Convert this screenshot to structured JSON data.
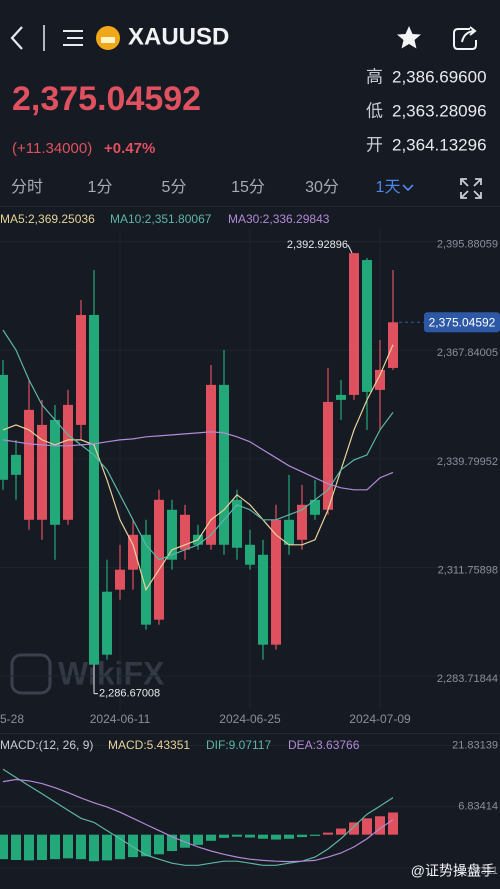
{
  "header": {
    "symbol": "XAUUSD",
    "price": "2,375.04592",
    "change": "(+11.34000)",
    "change_pct": "+0.47%",
    "stats": [
      {
        "label": "高",
        "value": "2,386.69600"
      },
      {
        "label": "低",
        "value": "2,363.28096"
      },
      {
        "label": "开",
        "value": "2,364.13296"
      }
    ],
    "tabs": [
      "分时",
      "1分",
      "5分",
      "15分",
      "30分",
      "1天"
    ]
  },
  "watermark": "WikiFX",
  "credit": "@证势操盘手",
  "chart_data": [
    {
      "type": "candlestick",
      "open": [
        2361.47,
        2340.83,
        2324.07,
        2324.07,
        2349.86,
        2324.07,
        2348.57,
        2376.94,
        2305.5,
        2306.02,
        2311.18,
        2320.2,
        2298.28,
        2326.65,
        2316.33,
        2320.2,
        2317.62,
        2358.89,
        2329.23,
        2317.62,
        2315.04,
        2291.83,
        2324.07,
        2318.91,
        2329.23,
        2326.65,
        2356.31,
        2356.31,
        2391.12,
        2357.6,
        2363.27
      ],
      "high": [
        2365.33,
        2344.7,
        2360.18,
        2355.02,
        2353.73,
        2357.6,
        2380.81,
        2388.55,
        2313.76,
        2317.62,
        2324.07,
        2324.07,
        2331.81,
        2329.23,
        2327.94,
        2322.78,
        2364.04,
        2367.91,
        2331.81,
        2321.49,
        2318.91,
        2327.94,
        2335.67,
        2333.1,
        2334.39,
        2363.27,
        2360.18,
        2392.92896,
        2391.64,
        2370.49,
        2388.55
      ],
      "low": [
        2331.81,
        2329.23,
        2321.49,
        2318.91,
        2313.76,
        2322.78,
        2344.7,
        2286.67008,
        2287.96,
        2303.44,
        2306.02,
        2295.7,
        2296.99,
        2311.18,
        2313.76,
        2316.33,
        2316.33,
        2315.04,
        2313.76,
        2311.18,
        2287.96,
        2290.54,
        2315.04,
        2316.33,
        2324.07,
        2325.36,
        2349.86,
        2355.02,
        2347.28,
        2347.28,
        2362.76
      ],
      "close": [
        2334.39,
        2335.67,
        2352.44,
        2348.57,
        2322.78,
        2353.73,
        2376.94,
        2286.67,
        2289.25,
        2311.18,
        2320.2,
        2296.99,
        2329.23,
        2313.76,
        2325.36,
        2317.62,
        2358.89,
        2317.62,
        2316.85,
        2312.47,
        2291.83,
        2324.07,
        2317.62,
        2327.94,
        2325.36,
        2354.5,
        2355.02,
        2392.9,
        2357.08,
        2362.76,
        2375.04592
      ],
      "up_color": "#e0515f",
      "down_color": "#23a87a",
      "series": [
        {
          "name": "MA5",
          "label": "MA5:2,369.25036",
          "color": "#e6d39a",
          "values": [
            2347.28,
            2348.57,
            2347.28,
            2344.7,
            2343.41,
            2344.7,
            2344.7,
            2343.41,
            2334.39,
            2324.07,
            2317.62,
            2306.02,
            2311.18,
            2316.33,
            2317.62,
            2318.91,
            2324.07,
            2326.65,
            2330.52,
            2327.94,
            2324.07,
            2320.2,
            2317.62,
            2317.62,
            2318.91,
            2326.65,
            2336.97,
            2347.28,
            2355.02,
            2361.47,
            2369.25036
          ]
        },
        {
          "name": "MA10",
          "label": "MA10:2,351.80067",
          "color": "#5db5a6",
          "values": [
            2373.07,
            2367.91,
            2360.18,
            2353.73,
            2349.86,
            2345.99,
            2343.41,
            2340.83,
            2336.97,
            2330.52,
            2324.07,
            2317.62,
            2313.76,
            2315.04,
            2316.33,
            2317.62,
            2320.2,
            2324.07,
            2327.94,
            2326.65,
            2324.07,
            2324.07,
            2325.36,
            2326.65,
            2329.23,
            2331.81,
            2336.97,
            2339.54,
            2340.83,
            2347.28,
            2351.80067
          ]
        },
        {
          "name": "MA30",
          "label": "MA30:2,336.29843",
          "color": "#b38ad6",
          "values": [
            2344.7,
            2344.19,
            2343.67,
            2343.41,
            2343.16,
            2343.16,
            2343.41,
            2343.67,
            2344.19,
            2344.7,
            2344.96,
            2345.48,
            2345.73,
            2345.99,
            2346.25,
            2346.51,
            2346.77,
            2346.51,
            2345.48,
            2344.19,
            2342.12,
            2340.06,
            2338.0,
            2336.45,
            2334.9,
            2333.36,
            2332.32,
            2331.81,
            2331.81,
            2334.9,
            2336.29843
          ]
        }
      ],
      "ylim": [
        2283.71844,
        2395.88059
      ],
      "yticks": [
        {
          "value": 2395.88059,
          "label": "2,395.88059"
        },
        {
          "value": 2367.84005,
          "label": "2,367.84005"
        },
        {
          "value": 2339.79952,
          "label": "2,339.79952"
        },
        {
          "value": 2311.75898,
          "label": "2,311.75898"
        },
        {
          "value": 2283.71844,
          "label": "2,283.71844"
        }
      ],
      "xticks": [
        {
          "value": -1,
          "label": "5-28"
        },
        {
          "value": 9,
          "label": "2024-06-11"
        },
        {
          "value": 19,
          "label": "2024-06-25"
        },
        {
          "value": 29,
          "label": "2024-07-09"
        }
      ],
      "high_label": {
        "value": 2392.92896,
        "label": "2,392.92896"
      },
      "low_label": {
        "value": 2286.67008,
        "label": "2,286.67008"
      },
      "last_label": {
        "value": 2375.04592,
        "label": "2,375.04592"
      },
      "grid": true
    },
    {
      "type": "macd",
      "legend": [
        "MACD:(12, 26, 9)",
        "MACD:5.43351",
        "DIF:9.07117",
        "DEA:3.63766"
      ],
      "legend_colors": [
        "#c9ccd2",
        "#e6d39a",
        "#5db5a6",
        "#b38ad6"
      ],
      "histogram": [
        -6.0,
        -6.2,
        -6.3,
        -6.2,
        -6.0,
        -5.8,
        -6.0,
        -6.5,
        -6.3,
        -6.0,
        -5.5,
        -5.3,
        -4.8,
        -4.0,
        -3.2,
        -2.5,
        -1.5,
        -0.8,
        -0.5,
        -0.7,
        -1.0,
        -1.2,
        -1.0,
        -0.6,
        -0.3,
        0.5,
        1.5,
        3.0,
        4.0,
        4.5,
        5.43351
      ],
      "series": [
        {
          "name": "DIF",
          "color": "#5db5a6",
          "values": [
            16,
            14,
            12,
            10,
            8,
            6,
            4,
            3,
            1,
            -1,
            -3,
            -5,
            -6,
            -7,
            -7.5,
            -7.5,
            -7,
            -6.5,
            -6.5,
            -7,
            -7.5,
            -7.5,
            -7,
            -6.5,
            -5.5,
            -3.5,
            -1,
            2,
            5,
            7,
            9.07117
          ]
        },
        {
          "name": "DEA",
          "color": "#b38ad6",
          "values": [
            13,
            13.5,
            13.2,
            12.5,
            11.5,
            10.3,
            9,
            7.8,
            6.8,
            5.5,
            4,
            2.5,
            1,
            -0.5,
            -1.8,
            -3,
            -4,
            -4.8,
            -5.5,
            -6,
            -6.3,
            -6.5,
            -6.6,
            -6.5,
            -6.3,
            -5.5,
            -4.5,
            -3,
            -1,
            1.5,
            3.63766
          ]
        }
      ],
      "ylim": [
        -8.16311,
        21.83139
      ],
      "yticks": [
        21.83139,
        6.83414,
        -8.16311
      ]
    }
  ]
}
